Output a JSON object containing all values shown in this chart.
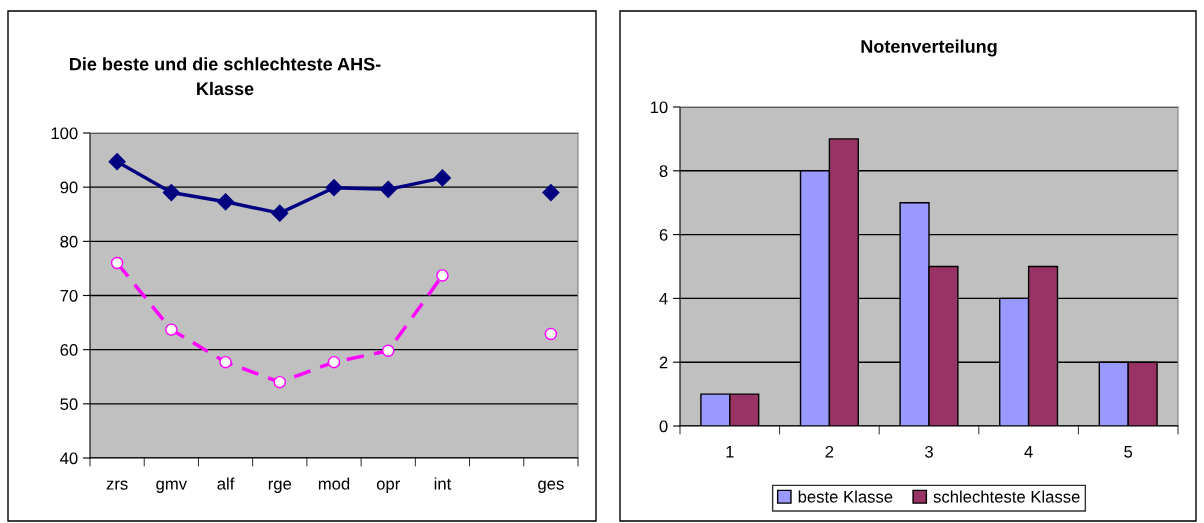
{
  "chart_data": [
    {
      "type": "line",
      "title": "Die beste und die schlechteste AHS-\nKlasse",
      "categories": [
        "zrs",
        "gmv",
        "alf",
        "rge",
        "mod",
        "opr",
        "int",
        null,
        "ges"
      ],
      "ylim": [
        40,
        100
      ],
      "yticks": [
        40,
        50,
        60,
        70,
        80,
        90,
        100
      ],
      "grid": "y",
      "legend": false,
      "series": [
        {
          "color": "#000080",
          "marker": "diamond",
          "line_style": "solid",
          "values": [
            94.7,
            89.0,
            87.3,
            85.2,
            89.9,
            89.6,
            91.7,
            null,
            89.0
          ]
        },
        {
          "color": "#ff00ff",
          "marker": "circle",
          "line_style": "dashed",
          "values": [
            76.0,
            63.7,
            57.7,
            54.0,
            57.7,
            59.8,
            73.7,
            null,
            62.9
          ]
        }
      ]
    },
    {
      "type": "bar",
      "title": "Notenverteilung",
      "categories": [
        "1",
        "2",
        "3",
        "4",
        "5"
      ],
      "ylim": [
        0,
        10
      ],
      "yticks": [
        0,
        2,
        4,
        6,
        8,
        10
      ],
      "grid": "y",
      "legend": "bottom",
      "series": [
        {
          "name": "beste Klasse",
          "color": "#9999ff",
          "values": [
            1,
            8,
            7,
            4,
            2
          ]
        },
        {
          "name": "schlechteste Klasse",
          "color": "#993366",
          "values": [
            1,
            9,
            5,
            5,
            2
          ]
        }
      ]
    }
  ]
}
